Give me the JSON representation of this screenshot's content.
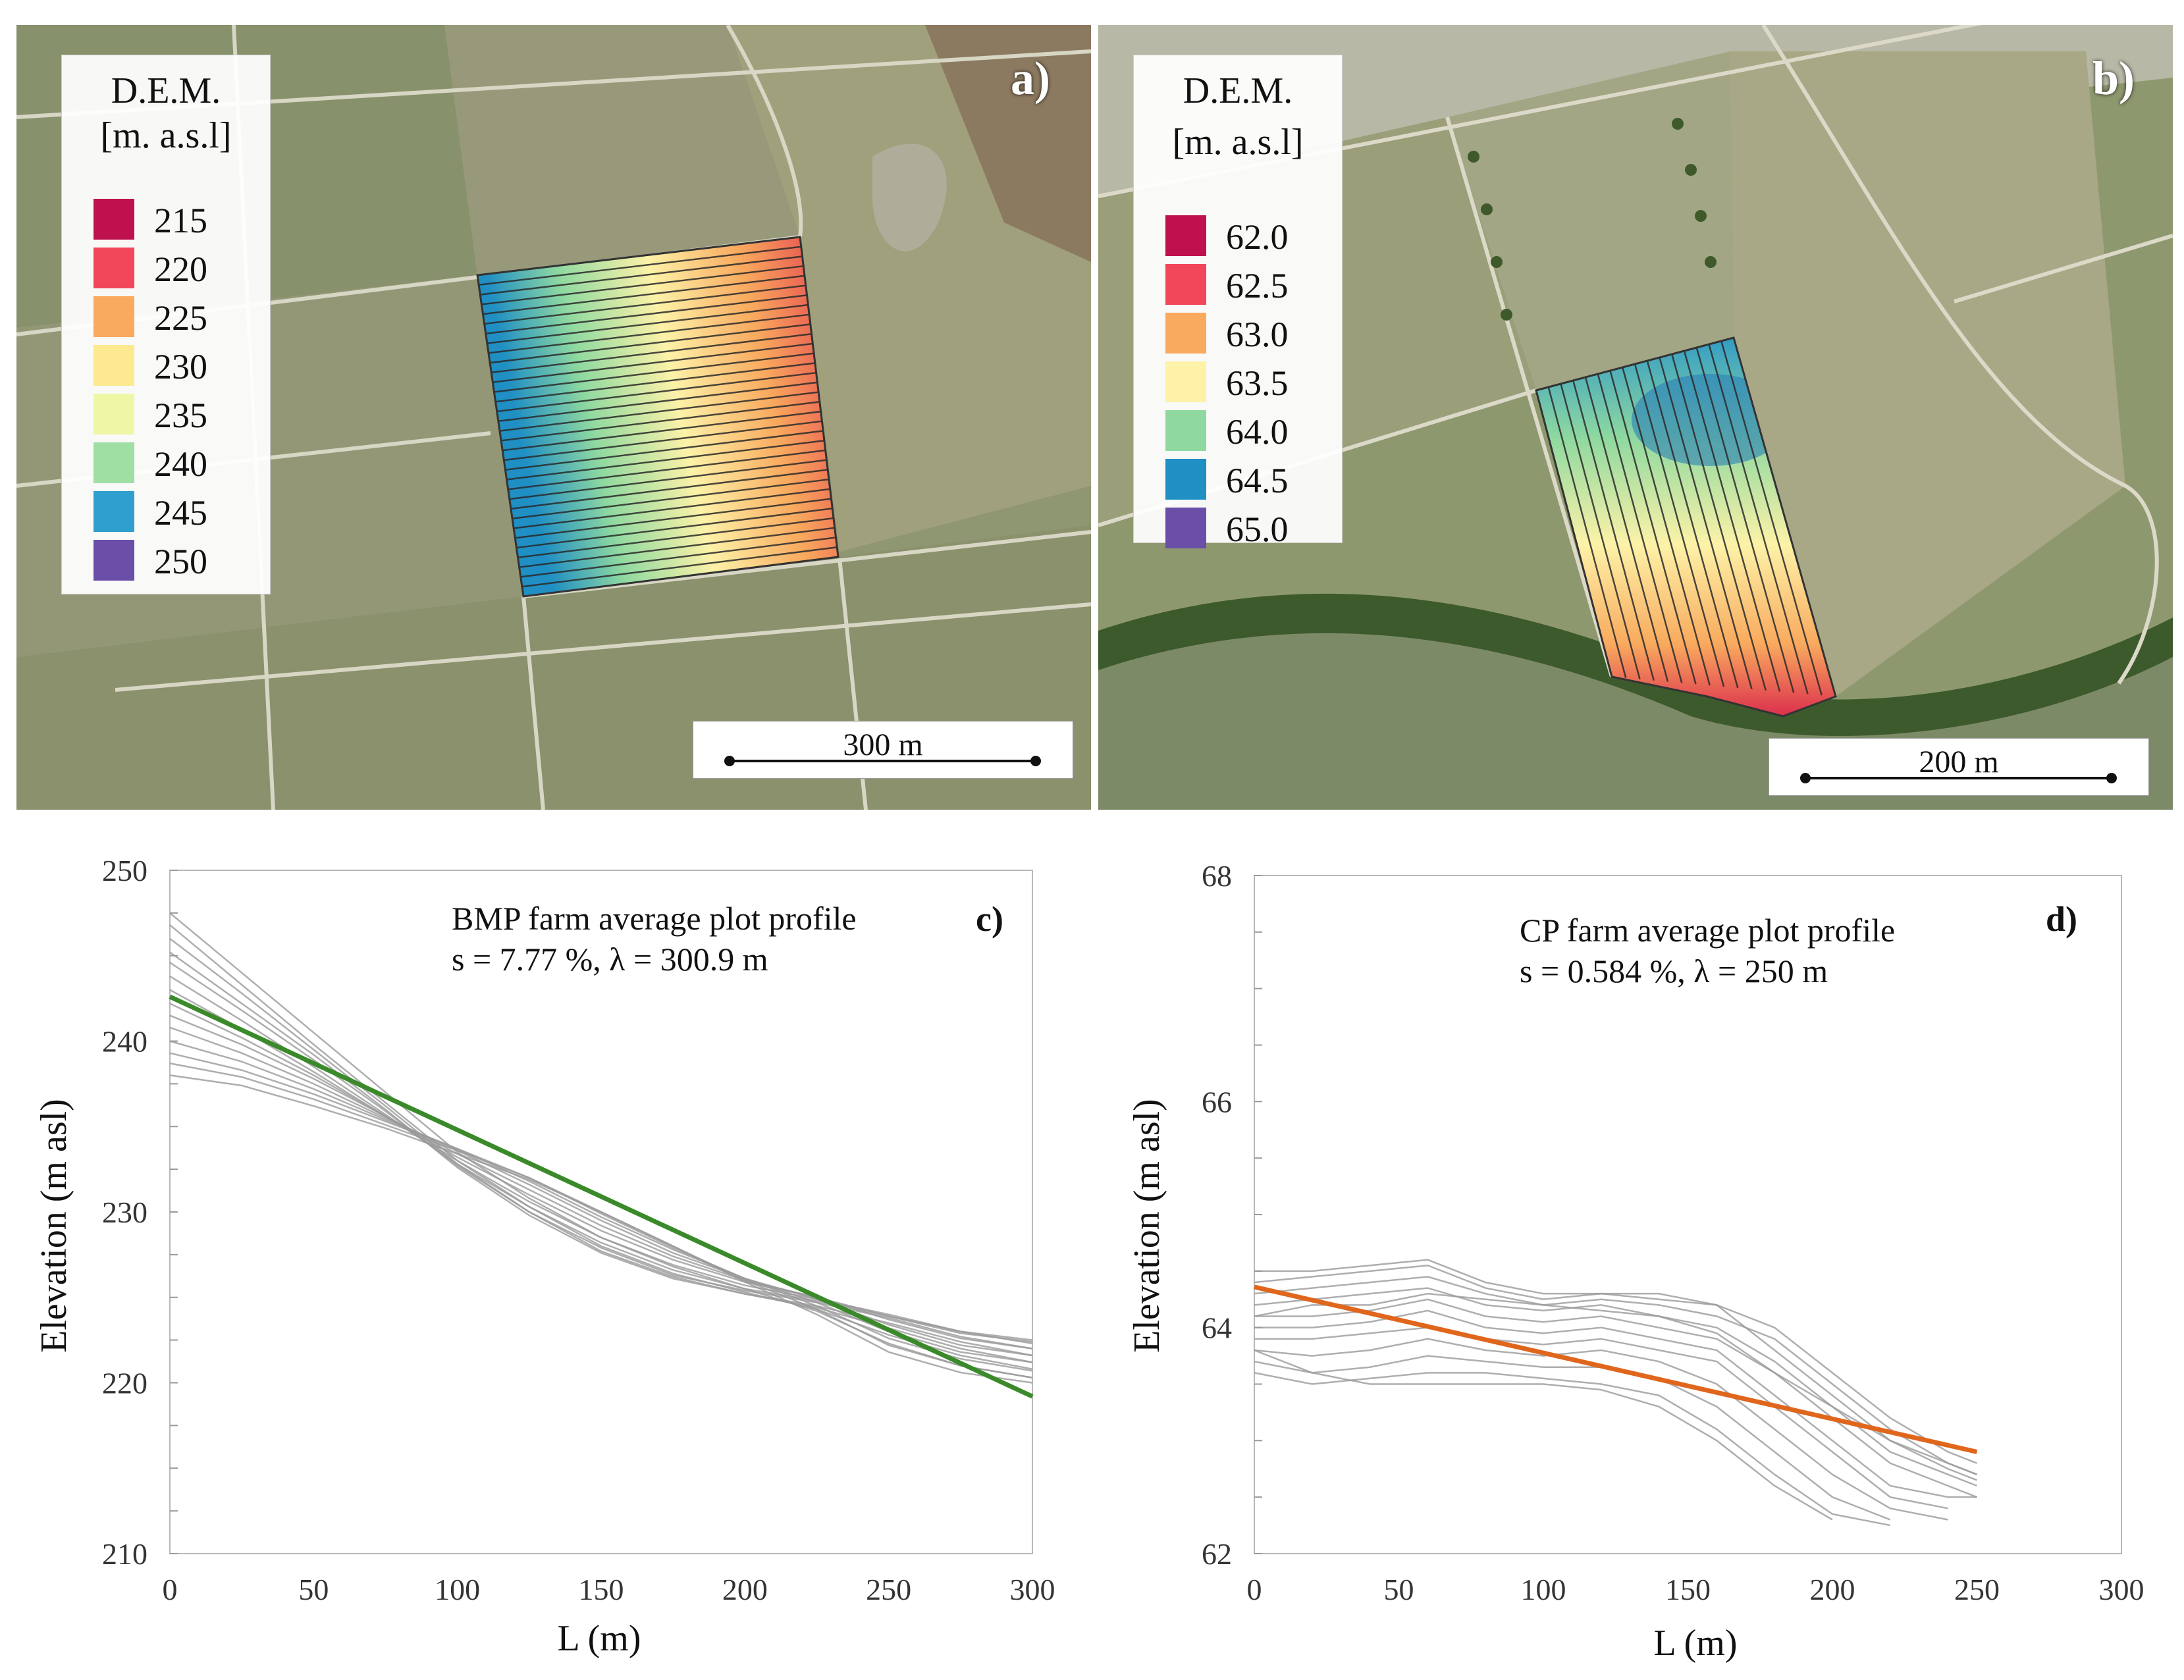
{
  "panels": {
    "a": {
      "letter": "a)",
      "legend_title_1": "D.E.M.",
      "legend_title_2": "[m. a.s.l]",
      "legend": [
        {
          "label": "215",
          "color": "#c0114f"
        },
        {
          "label": "220",
          "color": "#f2465a"
        },
        {
          "label": "225",
          "color": "#f9aa5e"
        },
        {
          "label": "230",
          "color": "#fde98f"
        },
        {
          "label": "235",
          "color": "#eef7a6"
        },
        {
          "label": "240",
          "color": "#9fdfa4"
        },
        {
          "label": "245",
          "color": "#2f9fcd"
        },
        {
          "label": "250",
          "color": "#6a4ea8"
        }
      ],
      "scale_label": "300 m"
    },
    "b": {
      "letter": "b)",
      "legend_title_1": "D.E.M.",
      "legend_title_2": "[m. a.s.l]",
      "legend": [
        {
          "label": "62.0",
          "color": "#c0114f"
        },
        {
          "label": "62.5",
          "color": "#f2465a"
        },
        {
          "label": "63.0",
          "color": "#f9aa5e"
        },
        {
          "label": "63.5",
          "color": "#fdf2a8"
        },
        {
          "label": "64.0",
          "color": "#8fd9a0"
        },
        {
          "label": "64.5",
          "color": "#1f8fc4"
        },
        {
          "label": "65.0",
          "color": "#6a4ea8"
        }
      ],
      "scale_label": "200 m"
    }
  },
  "chart_data": [
    {
      "id": "c",
      "type": "line",
      "letter": "c)",
      "annotation_line1": "BMP farm average plot profile",
      "annotation_line2": "s = 7.77 %, λ = 300.9 m",
      "xlabel": "L (m)",
      "ylabel": "Elevation (m asl)",
      "xlim": [
        0,
        300
      ],
      "ylim": [
        210,
        250
      ],
      "xticks": [
        0,
        50,
        100,
        150,
        200,
        250,
        300
      ],
      "yticks": [
        210,
        220,
        230,
        240,
        250
      ],
      "fit_color": "#3a8a2a",
      "fit_line": {
        "x": [
          0,
          300
        ],
        "y": [
          242.6,
          219.2
        ]
      },
      "profiles": [
        {
          "x": [
            0,
            25,
            50,
            75,
            100,
            125,
            150,
            175,
            200,
            225,
            250,
            275,
            300
          ],
          "y": [
            247.5,
            244.0,
            240.5,
            237.0,
            233.5,
            230.8,
            228.5,
            226.8,
            225.5,
            224.2,
            222.3,
            221.0,
            220.3
          ]
        },
        {
          "x": [
            0,
            25,
            50,
            75,
            100,
            125,
            150,
            175,
            200,
            225,
            250,
            275,
            300
          ],
          "y": [
            246.8,
            243.3,
            239.8,
            236.4,
            233.0,
            230.3,
            228.0,
            226.4,
            225.3,
            224.3,
            222.8,
            221.6,
            220.8
          ]
        },
        {
          "x": [
            0,
            25,
            50,
            75,
            100,
            125,
            150,
            175,
            200,
            225,
            250,
            275,
            300
          ],
          "y": [
            246.0,
            242.8,
            239.5,
            236.2,
            232.8,
            230.0,
            227.7,
            226.2,
            225.2,
            224.4,
            223.2,
            222.0,
            221.2
          ]
        },
        {
          "x": [
            0,
            25,
            50,
            75,
            100,
            125,
            150,
            175,
            200,
            225,
            250,
            275,
            300
          ],
          "y": [
            245.2,
            242.2,
            239.2,
            236.0,
            232.6,
            229.8,
            227.6,
            226.1,
            225.2,
            224.5,
            223.5,
            222.4,
            221.6
          ]
        },
        {
          "x": [
            0,
            25,
            50,
            75,
            100,
            125,
            150,
            175,
            200,
            225,
            250,
            275,
            300
          ],
          "y": [
            244.6,
            241.8,
            238.9,
            235.9,
            232.7,
            230.0,
            227.9,
            226.3,
            225.4,
            224.7,
            223.8,
            222.7,
            222.0
          ]
        },
        {
          "x": [
            0,
            25,
            50,
            75,
            100,
            125,
            150,
            175,
            200,
            225,
            250,
            275,
            300
          ],
          "y": [
            243.8,
            241.2,
            238.5,
            235.7,
            232.8,
            230.3,
            228.2,
            226.6,
            225.5,
            224.8,
            223.9,
            223.0,
            222.3
          ]
        },
        {
          "x": [
            0,
            25,
            50,
            75,
            100,
            125,
            150,
            175,
            200,
            225,
            250,
            275,
            300
          ],
          "y": [
            243.0,
            240.7,
            238.2,
            235.6,
            233.0,
            230.6,
            228.5,
            226.9,
            225.7,
            224.9,
            224.0,
            223.0,
            222.5
          ]
        },
        {
          "x": [
            0,
            25,
            50,
            75,
            100,
            125,
            150,
            175,
            200,
            225,
            250,
            275,
            300
          ],
          "y": [
            242.2,
            240.2,
            238.0,
            235.6,
            233.2,
            231.0,
            228.9,
            227.2,
            225.9,
            225.0,
            223.9,
            222.9,
            222.4
          ]
        },
        {
          "x": [
            0,
            25,
            50,
            75,
            100,
            125,
            150,
            175,
            200,
            225,
            250,
            275,
            300
          ],
          "y": [
            241.5,
            239.8,
            237.8,
            235.6,
            233.4,
            231.3,
            229.2,
            227.4,
            226.0,
            225.0,
            223.7,
            222.6,
            222.0
          ]
        },
        {
          "x": [
            0,
            25,
            50,
            75,
            100,
            125,
            150,
            175,
            200,
            225,
            250,
            275,
            300
          ],
          "y": [
            240.8,
            239.3,
            237.5,
            235.5,
            233.6,
            231.6,
            229.5,
            227.6,
            226.1,
            224.9,
            223.4,
            222.2,
            221.6
          ]
        },
        {
          "x": [
            0,
            25,
            50,
            75,
            100,
            125,
            150,
            175,
            200,
            225,
            250,
            275,
            300
          ],
          "y": [
            240.0,
            238.8,
            237.2,
            235.4,
            233.7,
            231.8,
            229.7,
            227.8,
            226.1,
            224.7,
            223.0,
            221.8,
            221.2
          ]
        },
        {
          "x": [
            0,
            25,
            50,
            75,
            100,
            125,
            150,
            175,
            200,
            225,
            250,
            275,
            300
          ],
          "y": [
            239.3,
            238.3,
            236.9,
            235.3,
            233.7,
            232.0,
            229.9,
            227.9,
            226.1,
            224.5,
            222.6,
            221.4,
            220.7
          ]
        },
        {
          "x": [
            0,
            25,
            50,
            75,
            100,
            125,
            150,
            175,
            200,
            225,
            250,
            275,
            300
          ],
          "y": [
            238.7,
            237.9,
            236.6,
            235.1,
            233.6,
            232.0,
            230.0,
            228.0,
            226.0,
            224.3,
            222.2,
            221.0,
            220.3
          ]
        },
        {
          "x": [
            0,
            25,
            50,
            75,
            100,
            125,
            150,
            175,
            200,
            225,
            250,
            275,
            300
          ],
          "y": [
            238.0,
            237.4,
            236.2,
            234.9,
            233.4,
            231.9,
            230.0,
            228.0,
            225.9,
            224.0,
            221.8,
            220.6,
            220.0
          ]
        }
      ]
    },
    {
      "id": "d",
      "type": "line",
      "letter": "d)",
      "annotation_line1": "CP farm average plot profile",
      "annotation_line2": "s = 0.584 %, λ = 250 m",
      "xlabel": "L (m)",
      "ylabel": "Elevation (m asl)",
      "xlim": [
        0,
        300
      ],
      "ylim": [
        62,
        68
      ],
      "xticks": [
        0,
        50,
        100,
        150,
        200,
        250,
        300
      ],
      "yticks": [
        62,
        64,
        66,
        68
      ],
      "fit_color": "#e0661c",
      "fit_line": {
        "x": [
          0,
          250
        ],
        "y": [
          64.36,
          62.9
        ]
      },
      "profiles": [
        {
          "x": [
            0,
            20,
            40,
            60,
            80,
            100,
            120,
            140,
            160,
            180,
            200,
            220,
            240,
            250
          ],
          "y": [
            64.5,
            64.5,
            64.55,
            64.6,
            64.4,
            64.3,
            64.3,
            64.25,
            64.2,
            63.8,
            63.4,
            63.0,
            62.8,
            62.7
          ]
        },
        {
          "x": [
            0,
            20,
            40,
            60,
            80,
            100,
            120,
            140,
            160,
            180,
            200,
            220,
            240,
            250
          ],
          "y": [
            64.4,
            64.45,
            64.5,
            64.55,
            64.35,
            64.25,
            64.3,
            64.3,
            64.2,
            64.0,
            63.6,
            63.2,
            62.9,
            62.8
          ]
        },
        {
          "x": [
            0,
            20,
            40,
            60,
            80,
            100,
            120,
            140,
            160,
            180,
            200,
            220,
            240,
            250
          ],
          "y": [
            64.3,
            64.35,
            64.4,
            64.45,
            64.3,
            64.2,
            64.25,
            64.2,
            64.1,
            63.9,
            63.5,
            63.1,
            62.8,
            62.7
          ]
        },
        {
          "x": [
            0,
            20,
            40,
            60,
            80,
            100,
            120,
            140,
            160,
            180,
            200,
            220,
            240,
            250
          ],
          "y": [
            64.2,
            64.25,
            64.3,
            64.35,
            64.2,
            64.15,
            64.2,
            64.1,
            64.0,
            63.7,
            63.3,
            62.9,
            62.7,
            62.6
          ]
        },
        {
          "x": [
            0,
            20,
            40,
            60,
            80,
            100,
            120,
            140,
            160,
            180,
            200,
            220,
            240,
            250
          ],
          "y": [
            64.1,
            64.1,
            64.15,
            64.25,
            64.1,
            64.05,
            64.1,
            64.0,
            63.9,
            63.6,
            63.2,
            62.8,
            62.6,
            62.5
          ]
        },
        {
          "x": [
            0,
            20,
            40,
            60,
            80,
            100,
            120,
            140,
            160,
            180,
            200,
            220,
            240,
            250
          ],
          "y": [
            64.0,
            64.0,
            64.05,
            64.15,
            64.0,
            63.95,
            64.0,
            63.9,
            63.8,
            63.4,
            63.0,
            62.6,
            62.5,
            62.5
          ]
        },
        {
          "x": [
            0,
            20,
            40,
            60,
            80,
            100,
            120,
            140,
            160,
            180,
            200,
            220,
            240,
            250
          ],
          "y": [
            63.9,
            63.9,
            63.95,
            64.0,
            63.9,
            63.85,
            63.9,
            63.8,
            63.7,
            63.3,
            62.9,
            62.5,
            62.4,
            null
          ]
        },
        {
          "x": [
            0,
            20,
            40,
            60,
            80,
            100,
            120,
            140,
            160,
            180,
            200,
            220,
            240,
            250
          ],
          "y": [
            63.8,
            63.75,
            63.8,
            63.9,
            63.8,
            63.75,
            63.8,
            63.7,
            63.5,
            63.1,
            62.7,
            62.4,
            62.3,
            null
          ]
        },
        {
          "x": [
            0,
            20,
            40,
            60,
            80,
            100,
            120,
            140,
            160,
            180,
            200,
            220,
            240,
            250
          ],
          "y": [
            63.7,
            63.6,
            63.65,
            63.75,
            63.7,
            63.65,
            63.65,
            63.55,
            63.3,
            62.9,
            62.5,
            62.3,
            null,
            null
          ]
        },
        {
          "x": [
            0,
            20,
            40,
            60,
            80,
            100,
            120,
            140,
            160,
            180,
            200,
            220,
            240,
            250
          ],
          "y": [
            63.6,
            63.5,
            63.55,
            63.6,
            63.6,
            63.55,
            63.5,
            63.4,
            63.1,
            62.7,
            62.35,
            62.25,
            null,
            null
          ]
        },
        {
          "x": [
            0,
            20,
            40,
            60,
            80,
            100,
            120,
            140,
            160,
            180,
            200,
            220,
            240,
            250
          ],
          "y": [
            63.8,
            63.6,
            63.5,
            63.5,
            63.5,
            63.5,
            63.45,
            63.3,
            63.0,
            62.6,
            62.3,
            null,
            null,
            null
          ]
        },
        {
          "x": [
            0,
            20,
            40,
            60,
            80,
            100,
            120,
            140,
            160,
            180,
            200,
            220,
            240,
            250
          ],
          "y": [
            64.1,
            64.2,
            64.2,
            64.3,
            64.25,
            64.2,
            64.15,
            64.1,
            63.95,
            63.6,
            63.3,
            63.0,
            62.75,
            62.65
          ]
        }
      ]
    }
  ]
}
